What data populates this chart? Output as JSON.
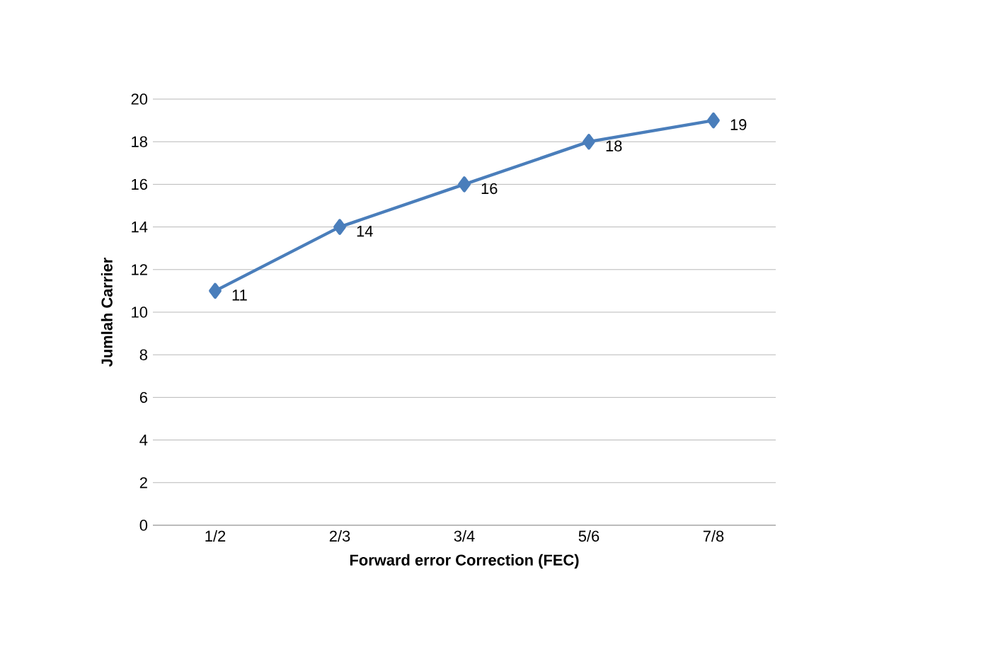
{
  "chart_data": {
    "type": "line",
    "xlabel": "Forward error Correction (FEC)",
    "ylabel": "Jumlah Carrier",
    "categories": [
      "1/2",
      "2/3",
      "3/4",
      "5/6",
      "7/8"
    ],
    "values": [
      11,
      14,
      16,
      18,
      19
    ],
    "color": "#4a7ebb",
    "marker": "diamond",
    "line_style": "solid",
    "ylim": [
      0,
      20
    ],
    "yticks": [
      0,
      2,
      4,
      6,
      8,
      10,
      12,
      14,
      16,
      18,
      20
    ],
    "grid": "y",
    "data_labels": true
  }
}
